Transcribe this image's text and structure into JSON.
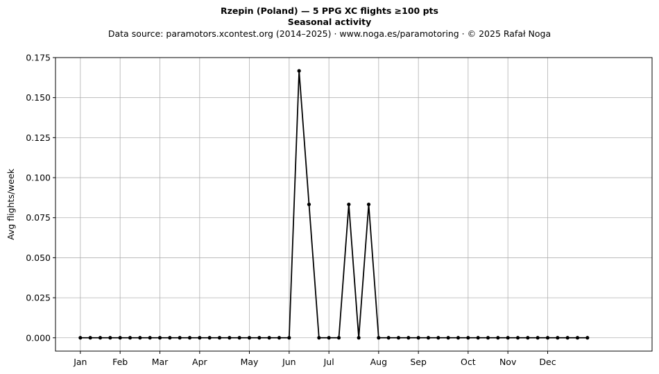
{
  "chart_data": {
    "type": "line",
    "title": "Rzepin (Poland)  —  5 PPG XC flights ≥100 pts",
    "subtitle": "Seasonal activity",
    "source_note": "Data source: paramotors.xcontest.org (2014–2025)  ·  www.noga.es/paramotoring  ·  © 2025 Rafał Noga",
    "xlabel": "",
    "ylabel": "Avg flights/week",
    "xlim": [
      -2.5,
      57.5
    ],
    "ylim": [
      -0.00833,
      0.175
    ],
    "grid": true,
    "legend": "none",
    "x_ticks": [
      {
        "label": "Jan",
        "week": 0
      },
      {
        "label": "Feb",
        "week": 4
      },
      {
        "label": "Mar",
        "week": 8
      },
      {
        "label": "Apr",
        "week": 12
      },
      {
        "label": "May",
        "week": 17
      },
      {
        "label": "Jun",
        "week": 21
      },
      {
        "label": "Jul",
        "week": 25
      },
      {
        "label": "Aug",
        "week": 30
      },
      {
        "label": "Sep",
        "week": 34
      },
      {
        "label": "Oct",
        "week": 39
      },
      {
        "label": "Nov",
        "week": 43
      },
      {
        "label": "Dec",
        "week": 47
      }
    ],
    "y_ticks": [
      "0.000",
      "0.025",
      "0.050",
      "0.075",
      "0.100",
      "0.125",
      "0.150",
      "0.175"
    ],
    "series": [
      {
        "color": "#000000",
        "x": [
          0,
          1,
          2,
          3,
          4,
          5,
          6,
          7,
          8,
          9,
          10,
          11,
          12,
          13,
          14,
          15,
          16,
          17,
          18,
          19,
          20,
          21,
          22,
          23,
          24,
          25,
          26,
          27,
          28,
          29,
          30,
          31,
          32,
          33,
          34,
          35,
          36,
          37,
          38,
          39,
          40,
          41,
          42,
          43,
          44,
          45,
          46,
          47,
          48,
          49,
          50,
          51
        ],
        "values": [
          0,
          0,
          0,
          0,
          0,
          0,
          0,
          0,
          0,
          0,
          0,
          0,
          0,
          0,
          0,
          0,
          0,
          0,
          0,
          0,
          0,
          0,
          0.1667,
          0.0833,
          0,
          0,
          0,
          0.0833,
          0,
          0.0833,
          0,
          0,
          0,
          0,
          0,
          0,
          0,
          0,
          0,
          0,
          0,
          0,
          0,
          0,
          0,
          0,
          0,
          0,
          0,
          0,
          0,
          0
        ]
      }
    ]
  }
}
